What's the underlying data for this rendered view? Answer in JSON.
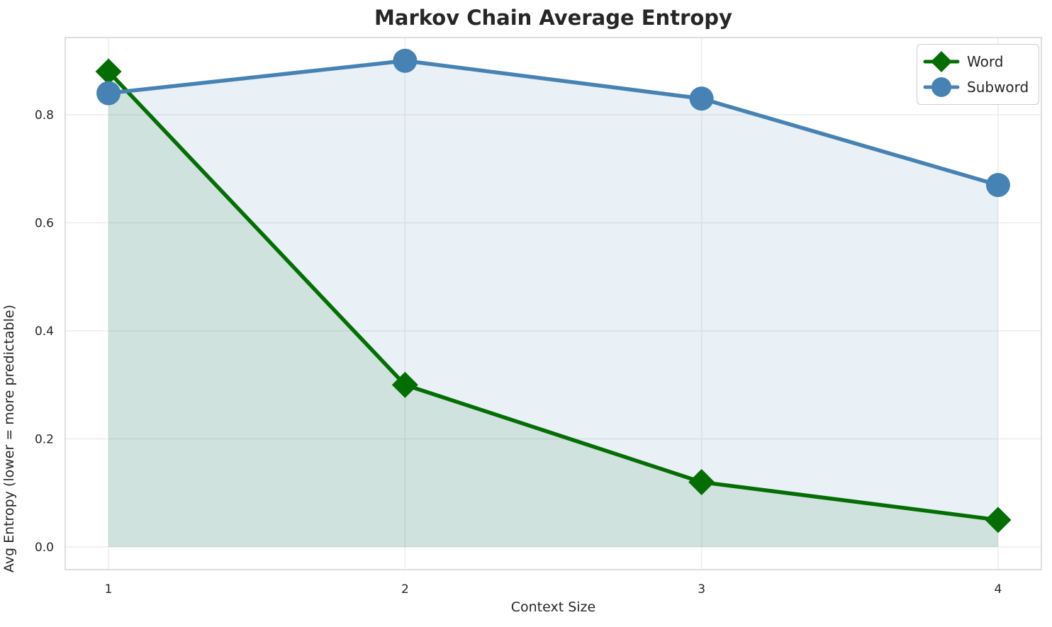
{
  "page_title": "Markov Chain Average Entropy",
  "style": {
    "background": "#ffffff",
    "grid_color": "#ebebeb",
    "spine_color": "#d5d5d5",
    "text_color": "#262626",
    "title_color": "#262626"
  },
  "chart_data": {
    "type": "line",
    "title": "Markov Chain Average Entropy",
    "xlabel": "Context Size",
    "ylabel": "Avg Entropy (lower = more predictable)",
    "x": [
      1,
      2,
      3,
      4
    ],
    "series": [
      {
        "name": "Word",
        "values": [
          0.88,
          0.3,
          0.12,
          0.05
        ],
        "color": "#046e04",
        "marker": "diamond",
        "fill_alpha": 0.11
      },
      {
        "name": "Subword",
        "values": [
          0.84,
          0.9,
          0.83,
          0.67
        ],
        "color": "#4682b4",
        "marker": "circle",
        "fill_alpha": 0.12
      }
    ],
    "area_fill_baseline": 0.0,
    "xticks": [
      1,
      2,
      3,
      4
    ],
    "yticks": [
      0.0,
      0.2,
      0.4,
      0.6,
      0.8
    ],
    "xlim": [
      0.854,
      4.146
    ],
    "ylim": [
      -0.042,
      0.943
    ],
    "grid": true,
    "legend_position": "upper right"
  }
}
